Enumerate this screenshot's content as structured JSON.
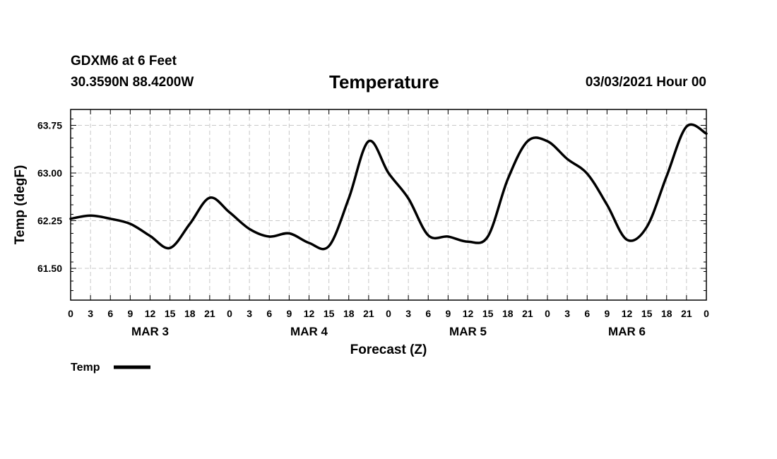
{
  "header": {
    "station": "GDXM6 at 6 Feet",
    "coords": "30.3590N 88.4200W",
    "title": "Temperature",
    "datetime": "03/03/2021 Hour 00"
  },
  "chart_data": {
    "type": "line",
    "title": "Temperature",
    "xlabel": "Forecast (Z)",
    "ylabel": "Temp (degF)",
    "ylim": [
      61.0,
      64.0
    ],
    "y_ticks": [
      61.5,
      62.25,
      63.0,
      63.75
    ],
    "y_tick_labels": [
      "61.50",
      "62.25",
      "63.00",
      "63.75"
    ],
    "x_range_hours": [
      0,
      96
    ],
    "x_ticks": [
      0,
      3,
      6,
      9,
      12,
      15,
      18,
      21,
      24,
      27,
      30,
      33,
      36,
      39,
      42,
      45,
      48,
      51,
      54,
      57,
      60,
      63,
      66,
      69,
      72,
      75,
      78,
      81,
      84,
      87,
      90,
      93,
      96
    ],
    "x_tick_labels": [
      "0",
      "3",
      "6",
      "9",
      "12",
      "15",
      "18",
      "21",
      "0",
      "3",
      "6",
      "9",
      "12",
      "15",
      "18",
      "21",
      "0",
      "3",
      "6",
      "9",
      "12",
      "15",
      "18",
      "21",
      "0",
      "3",
      "6",
      "9",
      "12",
      "15",
      "18",
      "21",
      "0"
    ],
    "day_labels": [
      {
        "label": "MAR 3",
        "hour": 12
      },
      {
        "label": "MAR 4",
        "hour": 36
      },
      {
        "label": "MAR 5",
        "hour": 60
      },
      {
        "label": "MAR 6",
        "hour": 84
      }
    ],
    "grid": true,
    "legend_position": "bottom-left",
    "series": [
      {
        "name": "Temp",
        "color": "#000000",
        "x": [
          0,
          3,
          6,
          9,
          12,
          15,
          18,
          21,
          24,
          27,
          30,
          33,
          36,
          39,
          42,
          45,
          48,
          51,
          54,
          57,
          60,
          63,
          66,
          69,
          72,
          75,
          78,
          81,
          84,
          87,
          90,
          93,
          96
        ],
        "values": [
          62.28,
          62.33,
          62.28,
          62.2,
          62.01,
          61.82,
          62.2,
          62.61,
          62.38,
          62.12,
          62.0,
          62.05,
          61.9,
          61.85,
          62.6,
          63.5,
          63.0,
          62.6,
          62.02,
          62.0,
          61.92,
          62.0,
          62.9,
          63.5,
          63.5,
          63.22,
          62.99,
          62.5,
          61.95,
          62.15,
          62.95,
          63.73,
          63.62
        ]
      }
    ]
  }
}
